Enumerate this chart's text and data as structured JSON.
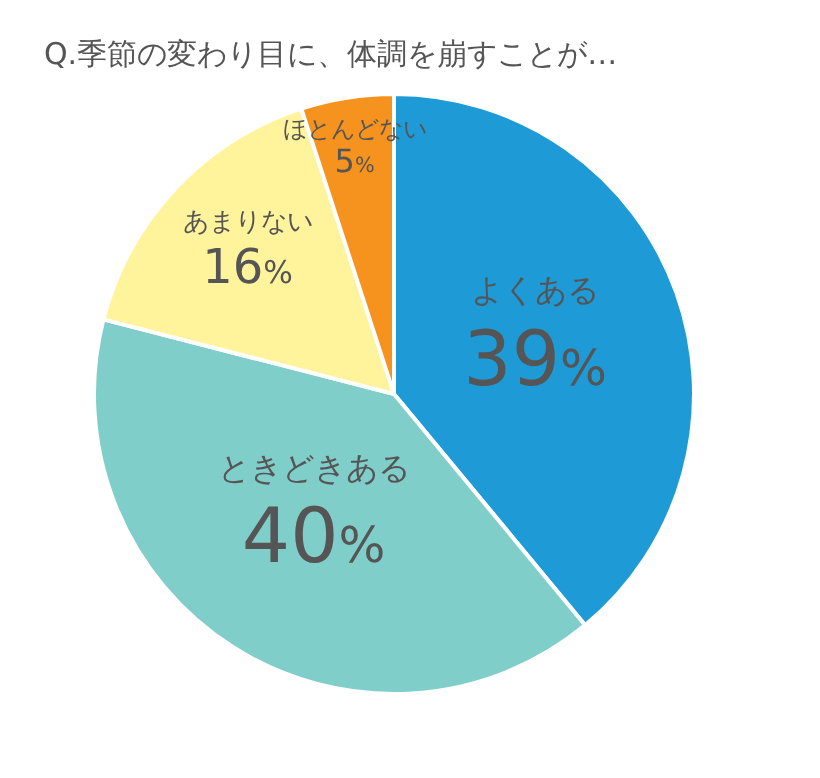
{
  "chart_data": {
    "type": "pie",
    "title": "Q.季節の変わり目に、体調を崩すことが…",
    "categories": [
      "よくある",
      "ときどきある",
      "あまりない",
      "ほとんどない"
    ],
    "values": [
      39,
      40,
      16,
      5
    ],
    "colors": [
      "#1e9bd7",
      "#80cec9",
      "#fff39c",
      "#f5931e"
    ],
    "value_labels": [
      "39%",
      "40%",
      "16%",
      "5%"
    ],
    "legend": false
  }
}
